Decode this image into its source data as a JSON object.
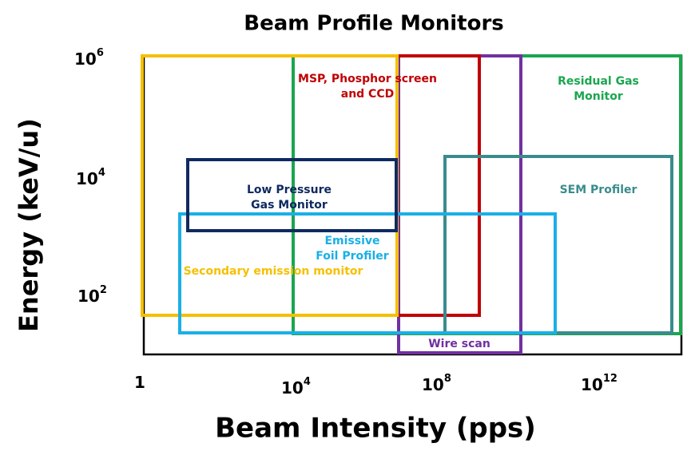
{
  "title": "Beam Profile Monitors",
  "x_axis": {
    "label": "Beam Intensity (pps)",
    "ticks": [
      {
        "base": "1"
      },
      {
        "base": "10",
        "exp": "4"
      },
      {
        "base": "10",
        "exp": "8"
      },
      {
        "base": "10",
        "exp": "12"
      }
    ]
  },
  "y_axis": {
    "label": "Energy (keV/u)",
    "ticks": [
      {
        "base": "10",
        "exp": "6"
      },
      {
        "base": "10",
        "exp": "4"
      },
      {
        "base": "10",
        "exp": "2"
      }
    ]
  },
  "regions": [
    {
      "lines": [
        "MSP, Phosphor screen",
        "and CCD"
      ]
    },
    {
      "lines": [
        "Residual Gas",
        "Monitor"
      ]
    },
    {
      "lines": [
        "Low Pressure",
        "Gas Monitor"
      ]
    },
    {
      "lines": [
        "SEM Profiler"
      ]
    },
    {
      "lines": [
        "Emissive",
        "Foil Profiler"
      ]
    },
    {
      "lines": [
        "Secondary emission monitor"
      ]
    },
    {
      "lines": [
        "Wire scan"
      ]
    }
  ]
}
